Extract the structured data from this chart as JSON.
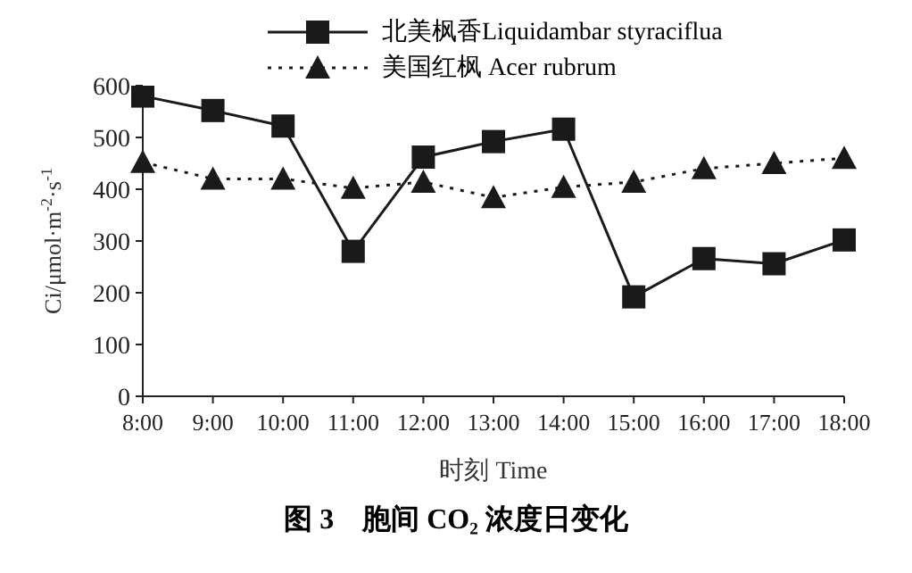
{
  "chart_data": {
    "type": "line",
    "title": "图 3　胞间 CO₂ 浓度日变化",
    "xlabel": "时刻 Time",
    "ylabel": "Ci/μmol·m$^{-2}$·s$^{-1}$",
    "categories": [
      "8:00",
      "9:00",
      "10:00",
      "11:00",
      "12:00",
      "13:00",
      "14:00",
      "15:00",
      "16:00",
      "17:00",
      "18:00"
    ],
    "ylim": [
      0,
      600
    ],
    "yticks": [
      0,
      100,
      200,
      300,
      400,
      500,
      600
    ],
    "grid": false,
    "legend": "top",
    "series": [
      {
        "name": "北美枫香Liquidambar styraciflua",
        "color": "#1a1a1a",
        "marker": "square",
        "line_style": "solid",
        "values": [
          580,
          552,
          522,
          280,
          462,
          492,
          516,
          192,
          266,
          256,
          302
        ]
      },
      {
        "name": "美国红枫 Acer rubrum",
        "color": "#1a1a1a",
        "marker": "triangle",
        "line_style": "dotted",
        "values": [
          452,
          420,
          420,
          402,
          414,
          384,
          404,
          414,
          440,
          450,
          460
        ]
      }
    ]
  }
}
